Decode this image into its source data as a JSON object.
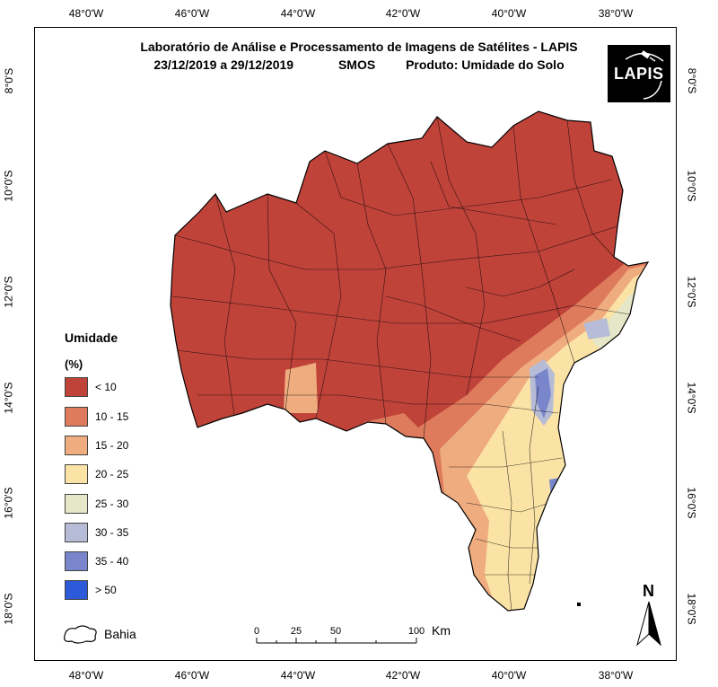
{
  "title": {
    "line1": "Laboratório de Análise e Processamento de Imagens de Satélites - LAPIS",
    "period": "23/12/2019  a  29/12/2019",
    "sensor": "SMOS",
    "product": "Produto: Umidade do Solo"
  },
  "logo": {
    "text": "LAPIS",
    "icon": "satellite-icon"
  },
  "axes": {
    "longitude_ticks": [
      "48°0'W",
      "46°0'W",
      "44°0'W",
      "42°0'W",
      "40°0'W",
      "38°0'W"
    ],
    "latitude_ticks": [
      "8°0'S",
      "10°0'S",
      "12°0'S",
      "14°0'S",
      "16°0'S",
      "18°0'S"
    ]
  },
  "legend": {
    "title": "Umidade",
    "unit": "(%)",
    "classes": [
      {
        "label": "< 10",
        "color": "#c0433a"
      },
      {
        "label": "10 - 15",
        "color": "#de7b5c"
      },
      {
        "label": "15 - 20",
        "color": "#efac7f"
      },
      {
        "label": "20 - 25",
        "color": "#fbe3a6"
      },
      {
        "label": "25 - 30",
        "color": "#e6e6c8"
      },
      {
        "label": "30 - 35",
        "color": "#b6bcd6"
      },
      {
        "label": "35 - 40",
        "color": "#7a86cc"
      },
      {
        "label": "> 50",
        "color": "#2d5ad8"
      }
    ],
    "boundary_label": "Bahia"
  },
  "scale": {
    "ticks": [
      "0",
      "25",
      "50",
      "100"
    ],
    "unit": "Km"
  },
  "north": {
    "label": "N"
  }
}
